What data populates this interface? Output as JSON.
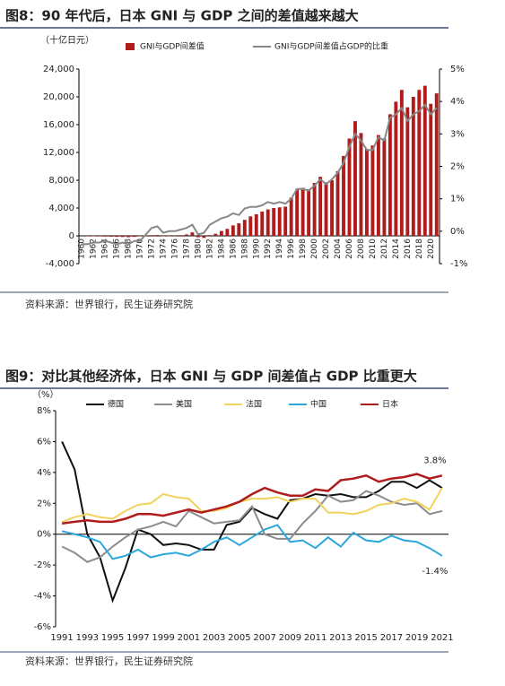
{
  "chart_data": [
    {
      "type": "bar_line",
      "title": "图8：90 年代后，日本 GNI 与 GDP 之间的差值越来越大",
      "unit_label": "（十亿日元）",
      "source": "资料来源：世界银行，民生证券研究院",
      "categories": [
        "1960",
        null,
        "1962",
        null,
        "1964",
        null,
        "1966",
        null,
        "1968",
        null,
        "1970",
        null,
        "1972",
        null,
        "1974",
        null,
        "1976",
        null,
        "1978",
        null,
        "1980",
        null,
        "1982",
        null,
        "1984",
        null,
        "1986",
        null,
        "1988",
        null,
        "1990",
        null,
        "1992",
        null,
        "1994",
        null,
        "1996",
        null,
        "1998",
        null,
        "2000",
        null,
        "2002",
        null,
        "2004",
        null,
        "2006",
        null,
        "2008",
        null,
        "2010",
        null,
        "2012",
        null,
        "2014",
        null,
        "2016",
        null,
        "2018",
        null,
        "2020",
        null
      ],
      "series": [
        {
          "name": "GNI与GDP间差值",
          "color": "#b01c1c",
          "type": "bar",
          "values": [
            -20,
            -40,
            -60,
            -80,
            -100,
            -120,
            -150,
            -170,
            -200,
            -150,
            -50,
            30,
            100,
            120,
            -50,
            -60,
            -40,
            100,
            200,
            500,
            -200,
            -300,
            100,
            300,
            700,
            1000,
            1500,
            1800,
            2300,
            2800,
            3100,
            3500,
            3800,
            4000,
            4100,
            4200,
            5500,
            6700,
            6900,
            6700,
            7600,
            8500,
            7700,
            8000,
            9300,
            11500,
            14000,
            16500,
            14800,
            12500,
            13000,
            14500,
            14000,
            17500,
            19300,
            21000,
            18500,
            20000,
            21000,
            21600,
            19000,
            20500
          ]
        },
        {
          "name": "GNI与GDP间差值占GDP的比重",
          "color": "#888888",
          "type": "line",
          "axis": "y2",
          "values": [
            -0.4,
            -0.4,
            -0.35,
            -0.35,
            -0.3,
            -0.35,
            -0.4,
            -0.35,
            -0.4,
            -0.3,
            -0.3,
            -0.1,
            0.1,
            0.15,
            -0.05,
            0,
            0,
            0.05,
            0.1,
            0.2,
            -0.1,
            -0.05,
            0.2,
            0.3,
            0.4,
            0.45,
            0.55,
            0.5,
            0.7,
            0.75,
            0.75,
            0.8,
            0.9,
            0.85,
            0.9,
            0.85,
            1.0,
            1.3,
            1.3,
            1.25,
            1.4,
            1.6,
            1.45,
            1.6,
            1.8,
            2.1,
            2.6,
            3.0,
            2.8,
            2.5,
            2.5,
            2.9,
            2.8,
            3.5,
            3.6,
            3.8,
            3.4,
            3.6,
            3.7,
            3.9,
            3.6,
            3.8
          ]
        }
      ],
      "ylim": [
        -4000,
        24000
      ],
      "yticks": [
        {
          "value": -4000,
          "label": "-4,000"
        },
        0,
        {
          "value": 4000,
          "label": "4,000"
        },
        {
          "value": 8000,
          "label": "8,000"
        },
        {
          "value": 12000,
          "label": "12,000"
        },
        {
          "value": 16000,
          "label": "16,000"
        },
        {
          "value": 20000,
          "label": "20,000"
        },
        {
          "value": 24000,
          "label": "24,000"
        }
      ],
      "y2lim": [
        -1,
        5
      ],
      "y2ticks": [
        {
          "value": -1,
          "label": "-1%"
        },
        {
          "value": 0,
          "label": "0%"
        },
        {
          "value": 1,
          "label": "1%"
        },
        {
          "value": 2,
          "label": "2%"
        },
        {
          "value": 3,
          "label": "3%"
        },
        {
          "value": 4,
          "label": "4%"
        },
        {
          "value": 5,
          "label": "5%"
        }
      ],
      "grid": false
    },
    {
      "type": "line",
      "title": "图9：对比其他经济体，日本 GNI 与 GDP 间差值占 GDP 比重更大",
      "unit_label": "（%）",
      "source": "资料来源：世界银行，民生证券研究院",
      "categories": [
        "1991",
        null,
        "1993",
        null,
        "1995",
        null,
        "1997",
        null,
        "1999",
        null,
        "2001",
        null,
        "2003",
        null,
        "2005",
        null,
        "2007",
        null,
        "2009",
        null,
        "2011",
        null,
        "2013",
        null,
        "2015",
        null,
        "2017",
        null,
        "2019",
        null,
        "2021"
      ],
      "series": [
        {
          "name": "德国",
          "color": "#111111",
          "values": [
            6.0,
            4.2,
            0.0,
            -1.5,
            -4.3,
            -2.2,
            0.3,
            0.0,
            -0.7,
            -0.6,
            -0.7,
            -1.0,
            -1.0,
            0.6,
            0.8,
            1.7,
            1.3,
            1.0,
            2.2,
            2.3,
            2.6,
            2.5,
            2.6,
            2.4,
            2.4,
            2.8,
            3.4,
            3.4,
            3.0,
            3.5,
            3.0
          ]
        },
        {
          "name": "美国",
          "color": "#8c8c8c",
          "values": [
            -0.8,
            -1.2,
            -1.8,
            -1.5,
            -0.8,
            -0.2,
            0.3,
            0.5,
            0.8,
            0.5,
            1.5,
            1.1,
            0.7,
            0.8,
            0.9,
            1.8,
            0.0,
            -0.3,
            -0.3,
            0.7,
            1.5,
            2.5,
            2.1,
            2.2,
            2.8,
            2.5,
            2.1,
            1.9,
            2.0,
            1.3,
            1.5
          ]
        },
        {
          "name": "法国",
          "color": "#f2d25a",
          "values": [
            0.8,
            1.1,
            1.3,
            1.1,
            1.0,
            1.5,
            1.9,
            2.0,
            2.6,
            2.4,
            2.3,
            1.5,
            1.5,
            1.7,
            2.1,
            2.3,
            2.3,
            2.4,
            2.1,
            2.3,
            2.3,
            1.4,
            1.4,
            1.3,
            1.5,
            1.9,
            2.0,
            2.3,
            2.1,
            1.6,
            3.0
          ]
        },
        {
          "name": "中国",
          "color": "#2aa7dc",
          "values": [
            0.2,
            0.0,
            -0.2,
            -0.5,
            -1.6,
            -1.4,
            -1.0,
            -1.5,
            -1.3,
            -1.2,
            -1.4,
            -1.0,
            -0.5,
            -0.2,
            -0.7,
            -0.2,
            0.3,
            0.6,
            -0.5,
            -0.4,
            -0.9,
            -0.2,
            -0.8,
            0.1,
            -0.4,
            -0.5,
            -0.1,
            -0.4,
            -0.5,
            -0.9,
            -1.4
          ],
          "value_labels": [
            null,
            null,
            null,
            null,
            null,
            null,
            null,
            null,
            null,
            null,
            null,
            null,
            null,
            null,
            null,
            null,
            null,
            null,
            null,
            null,
            null,
            null,
            null,
            null,
            null,
            null,
            null,
            null,
            null,
            null,
            "-1.4%"
          ]
        },
        {
          "name": "日本",
          "color": "#b01c1c",
          "values": [
            0.7,
            0.8,
            0.9,
            0.8,
            0.8,
            1.0,
            1.3,
            1.3,
            1.2,
            1.4,
            1.6,
            1.4,
            1.6,
            1.8,
            2.1,
            2.6,
            3.0,
            2.7,
            2.5,
            2.5,
            2.9,
            2.8,
            3.5,
            3.6,
            3.8,
            3.4,
            3.6,
            3.7,
            3.9,
            3.6,
            3.8
          ],
          "value_labels": [
            null,
            null,
            null,
            null,
            null,
            null,
            null,
            null,
            null,
            null,
            null,
            null,
            null,
            null,
            null,
            null,
            null,
            null,
            null,
            null,
            null,
            null,
            null,
            null,
            null,
            null,
            null,
            null,
            null,
            null,
            "3.8%"
          ]
        }
      ],
      "ylim": [
        -6,
        8
      ],
      "yticks": [
        {
          "value": -6,
          "label": "-6%"
        },
        {
          "value": -4,
          "label": "-4%"
        },
        {
          "value": -2,
          "label": "-2%"
        },
        {
          "value": 0,
          "label": "0%"
        },
        {
          "value": 2,
          "label": "2%"
        },
        {
          "value": 4,
          "label": "4%"
        },
        {
          "value": 6,
          "label": "6%"
        },
        {
          "value": 8,
          "label": "8%"
        }
      ],
      "grid": false
    }
  ]
}
